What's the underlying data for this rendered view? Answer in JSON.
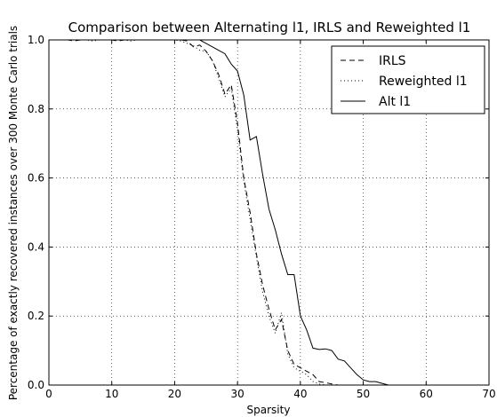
{
  "chart_data": {
    "type": "line",
    "title": "Comparison between Alternating l1, IRLS and Reweighted l1",
    "xlabel": "Sparsity",
    "ylabel": "Percentage of exactly recovered instances over 300 Monte Carlo trials",
    "xlim": [
      0,
      70
    ],
    "ylim": [
      0,
      1
    ],
    "xticks": [
      0,
      10,
      20,
      30,
      40,
      50,
      60,
      70
    ],
    "yticks": [
      0.0,
      0.2,
      0.4,
      0.6,
      0.8,
      1.0
    ],
    "xtick_labels": [
      "0",
      "10",
      "20",
      "30",
      "40",
      "50",
      "60",
      "70"
    ],
    "ytick_labels": [
      "0.0",
      "0.2",
      "0.4",
      "0.6",
      "0.8",
      "1.0"
    ],
    "grid": true,
    "legend_position": "top-right",
    "series": [
      {
        "name": "IRLS",
        "style": "dashed",
        "x": [
          0,
          1,
          2,
          3,
          4,
          5,
          6,
          7,
          8,
          9,
          10,
          11,
          12,
          13,
          14,
          15,
          16,
          17,
          18,
          19,
          20,
          21,
          22,
          23,
          24,
          25,
          26,
          27,
          28,
          29,
          30,
          31,
          32,
          33,
          34,
          35,
          36,
          37,
          38,
          39,
          40,
          41,
          42,
          43,
          44,
          45,
          46,
          47,
          48,
          49,
          50,
          51,
          52,
          53,
          54,
          55,
          56,
          57,
          58,
          59,
          60,
          61,
          62,
          63,
          64,
          65,
          66,
          67,
          68,
          69,
          70
        ],
        "y": [
          1.0,
          1.0,
          1.0,
          1.0,
          0.997,
          1.0,
          1.0,
          1.0,
          1.0,
          1.0,
          1.0,
          0.997,
          1.0,
          1.0,
          1.0,
          1.0,
          1.0,
          1.0,
          1.0,
          1.0,
          1.0,
          1.0,
          0.997,
          0.98,
          0.985,
          0.967,
          0.94,
          0.9,
          0.843,
          0.87,
          0.76,
          0.6,
          0.5,
          0.38,
          0.29,
          0.22,
          0.16,
          0.19,
          0.1,
          0.06,
          0.05,
          0.04,
          0.03,
          0.01,
          0.007,
          0.003,
          0.0,
          0.0,
          0.0,
          0.0,
          0.0,
          0.0,
          0.0,
          0.0,
          0.0,
          0.0,
          0.0,
          0.0,
          0.0,
          0.0,
          0.0,
          0.0,
          0.0,
          0.0,
          0.0,
          0.0,
          0.0,
          0.0,
          0.0,
          0.0,
          0.0
        ]
      },
      {
        "name": "Reweighted l1",
        "style": "dotted",
        "x": [
          0,
          1,
          2,
          3,
          4,
          5,
          6,
          7,
          8,
          9,
          10,
          11,
          12,
          13,
          14,
          15,
          16,
          17,
          18,
          19,
          20,
          21,
          22,
          23,
          24,
          25,
          26,
          27,
          28,
          29,
          30,
          31,
          32,
          33,
          34,
          35,
          36,
          37,
          38,
          39,
          40,
          41,
          42,
          43,
          44,
          45,
          46,
          47,
          48,
          49,
          50,
          51,
          52,
          53,
          54,
          55,
          56,
          57,
          58,
          59,
          60,
          61,
          62,
          63,
          64,
          65,
          66,
          67,
          68,
          69,
          70
        ],
        "y": [
          1.0,
          1.0,
          1.0,
          1.0,
          1.0,
          1.0,
          1.0,
          0.997,
          1.0,
          1.0,
          1.0,
          1.0,
          1.0,
          0.997,
          1.0,
          1.0,
          1.0,
          1.0,
          1.0,
          1.0,
          1.0,
          0.997,
          0.99,
          0.983,
          0.97,
          0.967,
          0.94,
          0.89,
          0.835,
          0.86,
          0.74,
          0.59,
          0.48,
          0.37,
          0.27,
          0.2,
          0.15,
          0.21,
          0.09,
          0.05,
          0.04,
          0.03,
          0.01,
          0.003,
          0.0,
          0.0,
          0.0,
          0.0,
          0.0,
          0.0,
          0.0,
          0.0,
          0.0,
          0.0,
          0.0,
          0.0,
          0.0,
          0.0,
          0.0,
          0.0,
          0.0,
          0.0,
          0.0,
          0.0,
          0.0,
          0.0,
          0.0,
          0.0,
          0.0,
          0.0,
          0.0
        ]
      },
      {
        "name": "Alt l1",
        "style": "solid",
        "x": [
          0,
          1,
          2,
          3,
          4,
          5,
          6,
          7,
          8,
          9,
          10,
          11,
          12,
          13,
          14,
          15,
          16,
          17,
          18,
          19,
          20,
          21,
          22,
          23,
          24,
          25,
          26,
          27,
          28,
          29,
          30,
          31,
          32,
          33,
          34,
          35,
          36,
          37,
          38,
          39,
          40,
          41,
          42,
          43,
          44,
          45,
          46,
          47,
          48,
          49,
          50,
          51,
          52,
          53,
          54,
          55,
          56,
          57,
          58,
          59,
          60,
          61,
          62,
          63,
          64,
          65,
          66,
          67,
          68,
          69,
          70
        ],
        "y": [
          1.0,
          1.0,
          1.0,
          1.0,
          1.0,
          1.0,
          1.0,
          1.0,
          1.0,
          1.0,
          1.0,
          1.0,
          1.0,
          1.0,
          1.0,
          1.0,
          1.0,
          1.0,
          1.0,
          1.0,
          1.0,
          1.0,
          1.0,
          1.0,
          1.0,
          0.99,
          0.98,
          0.97,
          0.96,
          0.93,
          0.91,
          0.84,
          0.71,
          0.72,
          0.61,
          0.51,
          0.45,
          0.38,
          0.32,
          0.32,
          0.2,
          0.16,
          0.107,
          0.103,
          0.105,
          0.1,
          0.075,
          0.07,
          0.05,
          0.03,
          0.015,
          0.01,
          0.01,
          0.005,
          0.0,
          0.0,
          0.0,
          0.0,
          0.0,
          0.0,
          0.0,
          0.0,
          0.0,
          0.0,
          0.0,
          0.0,
          0.0,
          0.0,
          0.0,
          0.0,
          0.0
        ]
      }
    ]
  }
}
